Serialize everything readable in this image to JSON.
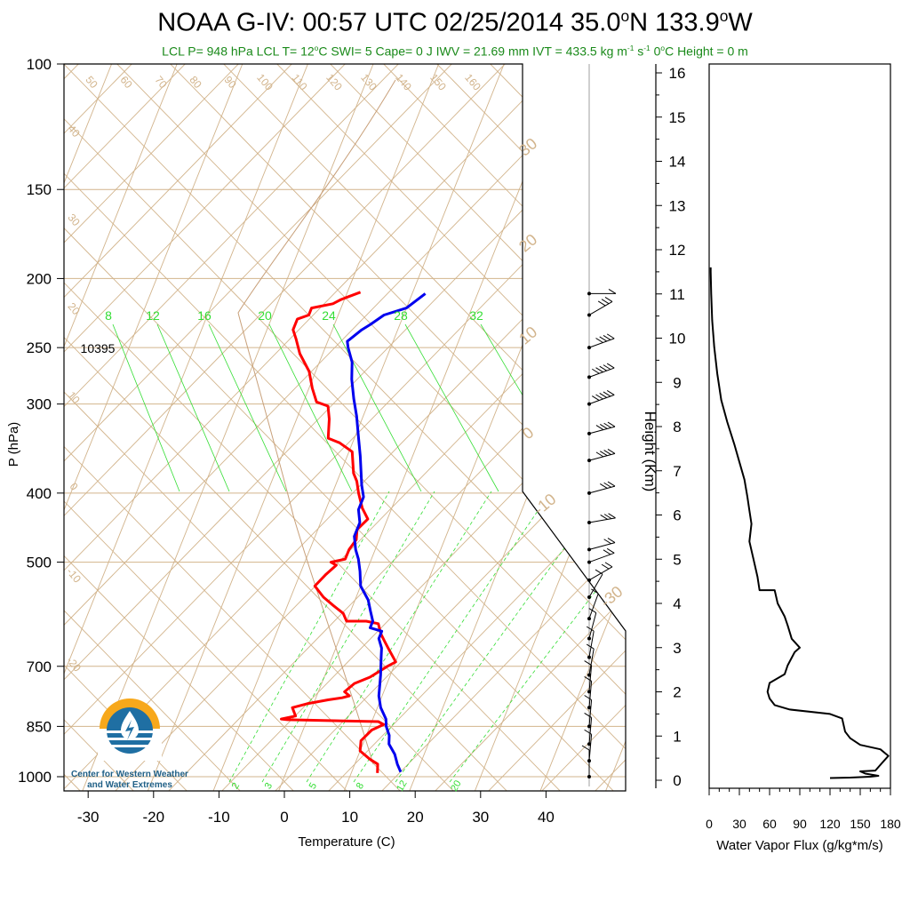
{
  "title": {
    "prefix": "NOAA G-IV: 00:57 UTC 02/25/2014  35.0",
    "deg1": "o",
    "mid": "N 133.9",
    "deg2": "o",
    "suffix": "W"
  },
  "stats": {
    "text": "LCL P= 948 hPa  LCL T= 12",
    "deg": "o",
    "text2": "C  SWI= 5  Cape= 0 J  IWV = 21.69 mm  IVT = 433.5 kg m",
    "exp1": "-1",
    "text3": " s",
    "exp2": "-1",
    "text4": "  0",
    "deg2": "o",
    "text5": "C Height = 0 m"
  },
  "logo": {
    "line1": "Center for Western Weather",
    "line2": "and Water Extremes"
  },
  "colors": {
    "temperature": "#ff0000",
    "dewpoint": "#0000ee",
    "mixing_ratio": "#33dd33",
    "adiabat": "#d2b48c",
    "frame": "#000000"
  },
  "chart_data": [
    {
      "type": "line",
      "name": "skew-t",
      "xlabel": "Temperature (C)",
      "ylabel": "P (hPa)",
      "xlim": [
        -34,
        40
      ],
      "ylim": [
        1000,
        100
      ],
      "y_scale": "log",
      "x_ticks": [
        "-30",
        "-20",
        "-10",
        "0",
        "10",
        "20",
        "30",
        "40"
      ],
      "y_ticks": [
        "100",
        "150",
        "200",
        "250",
        "300",
        "400",
        "500",
        "700",
        "850",
        "1000"
      ],
      "height_label": "10395",
      "mixing_ratio_labels_top": [
        "8",
        "12",
        "16",
        "20",
        "24",
        "28",
        "32"
      ],
      "mixing_ratio_labels_bottom": [
        "2",
        "3",
        "5",
        "8",
        "12",
        "20"
      ],
      "theta_labels_top": [
        "50",
        "60",
        "70",
        "80",
        "90",
        "100",
        "110",
        "120",
        "130",
        "140",
        "150",
        "160"
      ],
      "theta_labels_left": [
        "40",
        "30",
        "20",
        "10",
        "0",
        "-10",
        "-20"
      ],
      "theta_labels_right": [
        "30",
        "20",
        "10",
        "0",
        "-10",
        "-30"
      ],
      "series": [
        {
          "key": "temperature",
          "points": [
            [
              14,
              988
            ],
            [
              13.5,
              960
            ],
            [
              12,
              945
            ],
            [
              10,
              920
            ],
            [
              9.5,
              890
            ],
            [
              10.5,
              860
            ],
            [
              12,
              845
            ],
            [
              11,
              837
            ],
            [
              -3,
              832
            ],
            [
              -4,
              830
            ],
            [
              -2,
              822
            ],
            [
              -3,
              800
            ],
            [
              -1,
              790
            ],
            [
              2,
              780
            ],
            [
              4,
              775
            ],
            [
              5,
              770
            ],
            [
              4,
              760
            ],
            [
              5,
              740
            ],
            [
              7,
              725
            ],
            [
              9,
              700
            ],
            [
              10,
              690
            ],
            [
              8,
              660
            ],
            [
              7,
              645
            ],
            [
              6,
              630
            ],
            [
              5,
              610
            ],
            [
              3,
              605
            ],
            [
              0,
              605
            ],
            [
              -1,
              590
            ],
            [
              -3,
              575
            ],
            [
              -5,
              560
            ],
            [
              -7,
              540
            ],
            [
              -6,
              520
            ],
            [
              -5,
              505
            ],
            [
              -6,
              500
            ],
            [
              -4,
              495
            ],
            [
              -4,
              480
            ],
            [
              -3.5,
              465
            ],
            [
              -4,
              450
            ],
            [
              -3,
              435
            ],
            [
              -4.5,
              420
            ],
            [
              -6,
              400
            ],
            [
              -7,
              385
            ],
            [
              -8,
              375
            ],
            [
              -9.5,
              350
            ],
            [
              -12,
              340
            ],
            [
              -14,
              335
            ],
            [
              -15,
              315
            ],
            [
              -16,
              302
            ],
            [
              -18,
              298
            ],
            [
              -19.5,
              285
            ],
            [
              -21,
              270
            ],
            [
              -23.5,
              255
            ],
            [
              -25,
              243
            ],
            [
              -26,
              236
            ],
            [
              -26,
              228
            ],
            [
              -24.5,
              225
            ],
            [
              -24.5,
              220
            ],
            [
              -21.5,
              217
            ],
            [
              -20.5,
              214
            ],
            [
              -19.5,
              212
            ],
            [
              -18,
              209
            ]
          ]
        },
        {
          "key": "dewpoint",
          "points": [
            [
              17.5,
              985
            ],
            [
              16.5,
              960
            ],
            [
              15.5,
              930
            ],
            [
              14,
              900
            ],
            [
              13.5,
              875
            ],
            [
              12.5,
              850
            ],
            [
              12,
              830
            ],
            [
              10.5,
              800
            ],
            [
              9.5,
              770
            ],
            [
              9,
              745
            ],
            [
              8.5,
              720
            ],
            [
              8,
              700
            ],
            [
              7.5,
              680
            ],
            [
              7,
              660
            ],
            [
              6,
              640
            ],
            [
              6,
              625
            ],
            [
              4,
              618
            ],
            [
              4,
              605
            ],
            [
              3,
              585
            ],
            [
              2,
              565
            ],
            [
              0,
              540
            ],
            [
              -1,
              515
            ],
            [
              -2,
              495
            ],
            [
              -3,
              480
            ],
            [
              -4,
              460
            ],
            [
              -4,
              440
            ],
            [
              -5,
              422
            ],
            [
              -5,
              405
            ],
            [
              -6,
              390
            ],
            [
              -7,
              372
            ],
            [
              -8,
              355
            ],
            [
              -9.5,
              333
            ],
            [
              -11,
              312
            ],
            [
              -12.5,
              295
            ],
            [
              -14,
              277
            ],
            [
              -15,
              262
            ],
            [
              -16.5,
              250
            ],
            [
              -17,
              245
            ],
            [
              -15.5,
              236
            ],
            [
              -14.5,
              232
            ],
            [
              -13,
              225
            ],
            [
              -10,
              220
            ],
            [
              -9,
              215
            ],
            [
              -8,
              210
            ]
          ]
        }
      ]
    },
    {
      "type": "line",
      "name": "water-vapor-flux",
      "xlabel": "Water Vapor Flux (g/kg*m/s)",
      "ylabel": "Height (Km)",
      "xlim": [
        0,
        180
      ],
      "ylim": [
        0,
        16
      ],
      "x_ticks": [
        "0",
        "30",
        "60",
        "90",
        "120",
        "150",
        "180"
      ],
      "y_ticks": [
        "0",
        "1",
        "2",
        "3",
        "4",
        "5",
        "6",
        "7",
        "8",
        "9",
        "10",
        "11",
        "12",
        "13",
        "14",
        "15",
        "16"
      ],
      "points": [
        [
          120,
          0.05
        ],
        [
          140,
          0.06
        ],
        [
          160,
          0.08
        ],
        [
          168,
          0.1
        ],
        [
          155,
          0.15
        ],
        [
          150,
          0.2
        ],
        [
          165,
          0.22
        ],
        [
          172,
          0.4
        ],
        [
          178,
          0.55
        ],
        [
          170,
          0.7
        ],
        [
          150,
          0.8
        ],
        [
          140,
          0.95
        ],
        [
          135,
          1.1
        ],
        [
          132,
          1.4
        ],
        [
          120,
          1.5
        ],
        [
          80,
          1.6
        ],
        [
          65,
          1.7
        ],
        [
          60,
          1.85
        ],
        [
          58,
          2.0
        ],
        [
          60,
          2.2
        ],
        [
          75,
          2.4
        ],
        [
          78,
          2.6
        ],
        [
          85,
          2.9
        ],
        [
          90,
          3.0
        ],
        [
          82,
          3.2
        ],
        [
          78,
          3.5
        ],
        [
          75,
          3.7
        ],
        [
          68,
          4.0
        ],
        [
          65,
          4.3
        ],
        [
          50,
          4.3
        ],
        [
          48,
          4.6
        ],
        [
          44,
          5.0
        ],
        [
          40,
          5.4
        ],
        [
          42,
          5.8
        ],
        [
          40,
          6.1
        ],
        [
          38,
          6.4
        ],
        [
          35,
          6.8
        ],
        [
          30,
          7.2
        ],
        [
          25,
          7.6
        ],
        [
          18,
          8.1
        ],
        [
          12,
          8.6
        ],
        [
          8,
          9.2
        ],
        [
          5,
          9.8
        ],
        [
          3,
          10.4
        ],
        [
          2,
          11.0
        ],
        [
          1.5,
          11.5
        ],
        [
          1.5,
          11.6
        ]
      ]
    }
  ],
  "wind_barbs": [
    {
      "p": 210,
      "kt": 10,
      "dir": 270
    },
    {
      "p": 225,
      "kt": 35,
      "dir": 300
    },
    {
      "p": 250,
      "kt": 45,
      "dir": 290
    },
    {
      "p": 275,
      "kt": 50,
      "dir": 290
    },
    {
      "p": 300,
      "kt": 50,
      "dir": 290
    },
    {
      "p": 330,
      "kt": 45,
      "dir": 285
    },
    {
      "p": 360,
      "kt": 40,
      "dir": 285
    },
    {
      "p": 400,
      "kt": 35,
      "dir": 285
    },
    {
      "p": 440,
      "kt": 30,
      "dir": 280
    },
    {
      "p": 480,
      "kt": 25,
      "dir": 285
    },
    {
      "p": 500,
      "kt": 25,
      "dir": 290
    },
    {
      "p": 530,
      "kt": 20,
      "dir": 300
    },
    {
      "p": 560,
      "kt": 15,
      "dir": 330
    },
    {
      "p": 600,
      "kt": 10,
      "dir": 340
    },
    {
      "p": 640,
      "kt": 10,
      "dir": 345
    },
    {
      "p": 680,
      "kt": 10,
      "dir": 350
    },
    {
      "p": 720,
      "kt": 10,
      "dir": 350
    },
    {
      "p": 760,
      "kt": 10,
      "dir": 355
    },
    {
      "p": 800,
      "kt": 10,
      "dir": 355
    },
    {
      "p": 850,
      "kt": 10,
      "dir": 355
    },
    {
      "p": 900,
      "kt": 10,
      "dir": 355
    },
    {
      "p": 950,
      "kt": 10,
      "dir": 355
    },
    {
      "p": 1000,
      "kt": 10,
      "dir": 0
    }
  ]
}
